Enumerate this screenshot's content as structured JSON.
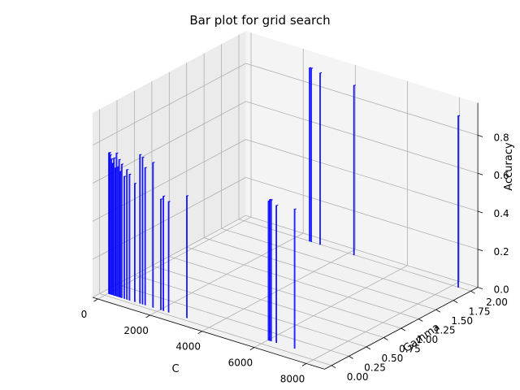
{
  "chart_data": {
    "type": "bar",
    "projection": "3d",
    "title": "Bar plot for grid search",
    "xlabel": "C",
    "ylabel": "Gamma",
    "zlabel": "Accuracy",
    "xlim": [
      -200,
      8700
    ],
    "ylim": [
      -0.1,
      2.1
    ],
    "zlim": [
      0,
      0.97
    ],
    "xticks": [
      "0",
      "2000",
      "4000",
      "6000",
      "8000"
    ],
    "yticks": [
      "0.00",
      "0.25",
      "0.50",
      "0.75",
      "1.00",
      "1.25",
      "1.50",
      "1.75",
      "2.00"
    ],
    "zticks": [
      "0.0",
      "0.2",
      "0.4",
      "0.6",
      "0.8"
    ],
    "grid": true,
    "bar_color": "#0000ff",
    "pane_color": "#f2f2f2",
    "bars": [
      {
        "c": 10,
        "gamma": 0.05,
        "acc": 0.74
      },
      {
        "c": 30,
        "gamma": 0.05,
        "acc": 0.74
      },
      {
        "c": 60,
        "gamma": 0.05,
        "acc": 0.73
      },
      {
        "c": 100,
        "gamma": 0.05,
        "acc": 0.71
      },
      {
        "c": 150,
        "gamma": 0.05,
        "acc": 0.69
      },
      {
        "c": 200,
        "gamma": 0.05,
        "acc": 0.72
      },
      {
        "c": 250,
        "gamma": 0.05,
        "acc": 0.67
      },
      {
        "c": 300,
        "gamma": 0.05,
        "acc": 0.75
      },
      {
        "c": 350,
        "gamma": 0.05,
        "acc": 0.68
      },
      {
        "c": 400,
        "gamma": 0.05,
        "acc": 0.72
      },
      {
        "c": 450,
        "gamma": 0.05,
        "acc": 0.66
      },
      {
        "c": 500,
        "gamma": 0.05,
        "acc": 0.7
      },
      {
        "c": 600,
        "gamma": 0.05,
        "acc": 0.64
      },
      {
        "c": 700,
        "gamma": 0.05,
        "acc": 0.68
      },
      {
        "c": 800,
        "gamma": 0.05,
        "acc": 0.66
      },
      {
        "c": 1000,
        "gamma": 0.05,
        "acc": 0.62
      },
      {
        "c": 1200,
        "gamma": 0.05,
        "acc": 0.78
      },
      {
        "c": 1300,
        "gamma": 0.05,
        "acc": 0.77
      },
      {
        "c": 1400,
        "gamma": 0.05,
        "acc": 0.72
      },
      {
        "c": 1700,
        "gamma": 0.05,
        "acc": 0.76
      },
      {
        "c": 2000,
        "gamma": 0.05,
        "acc": 0.58
      },
      {
        "c": 2100,
        "gamma": 0.05,
        "acc": 0.6
      },
      {
        "c": 2300,
        "gamma": 0.05,
        "acc": 0.58
      },
      {
        "c": 3000,
        "gamma": 0.05,
        "acc": 0.64
      },
      {
        "c": 6000,
        "gamma": 0.1,
        "acc": 0.73
      },
      {
        "c": 6050,
        "gamma": 0.1,
        "acc": 0.74
      },
      {
        "c": 6100,
        "gamma": 0.1,
        "acc": 0.74
      },
      {
        "c": 6300,
        "gamma": 0.1,
        "acc": 0.72
      },
      {
        "c": 7000,
        "gamma": 0.1,
        "acc": 0.73
      },
      {
        "c": 2500,
        "gamma": 2.0,
        "acc": 0.91
      },
      {
        "c": 2560,
        "gamma": 2.0,
        "acc": 0.91
      },
      {
        "c": 2900,
        "gamma": 2.0,
        "acc": 0.9
      },
      {
        "c": 4200,
        "gamma": 2.0,
        "acc": 0.89
      },
      {
        "c": 8200,
        "gamma": 2.0,
        "acc": 0.9
      }
    ]
  }
}
